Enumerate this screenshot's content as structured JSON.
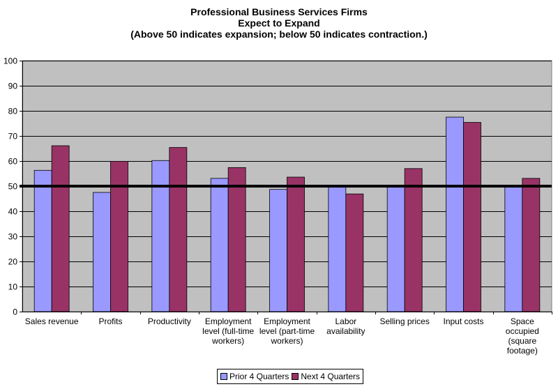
{
  "chart_data": {
    "type": "bar",
    "title_lines": [
      "Professional Business Services Firms",
      "Expect to Expand",
      "(Above 50 indicates expansion; below 50 indicates contraction.)"
    ],
    "categories": [
      [
        "Sales revenue"
      ],
      [
        "Profits"
      ],
      [
        "Productivity"
      ],
      [
        "Employment",
        "level (full-time",
        "workers)"
      ],
      [
        "Employment",
        "level (part-time",
        "workers)"
      ],
      [
        "Labor",
        "availability"
      ],
      [
        "Selling prices"
      ],
      [
        "Input costs"
      ],
      [
        "Space",
        "occupied",
        "(square",
        "footage)"
      ]
    ],
    "series": [
      {
        "name": "Prior 4 Quarters",
        "color": "#9999ff",
        "values": [
          56.3,
          47.5,
          60.2,
          53.1,
          48.7,
          49.9,
          49.8,
          77.5,
          49.8
        ]
      },
      {
        "name": "Next 4 Quarters",
        "color": "#993366",
        "values": [
          66.1,
          59.9,
          65.4,
          57.4,
          53.6,
          46.9,
          57.0,
          75.4,
          53.1
        ]
      }
    ],
    "ylim": [
      0,
      100
    ],
    "y_ticks": [
      0,
      10,
      20,
      30,
      40,
      50,
      60,
      70,
      80,
      90,
      100
    ],
    "reference_line": 50,
    "plot_background": "#c0c0c0",
    "grid": true,
    "legend_position": "bottom"
  }
}
